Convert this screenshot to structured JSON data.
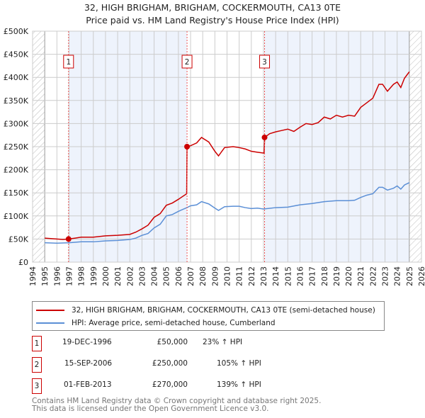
{
  "chart_data": {
    "type": "line",
    "title": "32, HIGH BRIGHAM, BRIGHAM, COCKERMOUTH, CA13 0TE",
    "subtitle": "Price paid vs. HM Land Registry's House Price Index (HPI)",
    "xlim": [
      1994,
      2026
    ],
    "ylim": [
      0,
      500000
    ],
    "x_ticks": [
      "1994",
      "1995",
      "1996",
      "1997",
      "1998",
      "1999",
      "2000",
      "2001",
      "2002",
      "2003",
      "2004",
      "2005",
      "2006",
      "2007",
      "2008",
      "2009",
      "2010",
      "2011",
      "2012",
      "2013",
      "2014",
      "2015",
      "2016",
      "2017",
      "2018",
      "2019",
      "2020",
      "2021",
      "2022",
      "2023",
      "2024",
      "2025",
      "2026"
    ],
    "y_ticks": [
      {
        "v": 0,
        "label": "£0"
      },
      {
        "v": 50000,
        "label": "£50K"
      },
      {
        "v": 100000,
        "label": "£100K"
      },
      {
        "v": 150000,
        "label": "£150K"
      },
      {
        "v": 200000,
        "label": "£200K"
      },
      {
        "v": 250000,
        "label": "£250K"
      },
      {
        "v": 300000,
        "label": "£300K"
      },
      {
        "v": 350000,
        "label": "£350K"
      },
      {
        "v": 400000,
        "label": "£400K"
      },
      {
        "v": 450000,
        "label": "£450K"
      },
      {
        "v": 500000,
        "label": "£500K"
      }
    ],
    "grid": true,
    "series": [
      {
        "name": "32, HIGH BRIGHAM, BRIGHAM, COCKERMOUTH, CA13 0TE (semi-detached house)",
        "color": "#cc0000",
        "x": [
          1995,
          1995.5,
          1996,
          1996.5,
          1996.96,
          1997.5,
          1998,
          1999,
          2000,
          2001,
          2002,
          2002.5,
          2003,
          2003.5,
          2004,
          2004.5,
          2005,
          2005.5,
          2006,
          2006.68,
          2006.71,
          2007,
          2007.5,
          2007.9,
          2008.5,
          2009,
          2009.3,
          2009.8,
          2010.5,
          2011,
          2011.5,
          2012,
          2012.5,
          2013.05,
          2013.1,
          2013.5,
          2014,
          2014.5,
          2015,
          2015.5,
          2016,
          2016.5,
          2017,
          2017.5,
          2018,
          2018.5,
          2019,
          2019.5,
          2020,
          2020.5,
          2021,
          2021.5,
          2022,
          2022.5,
          2022.8,
          2023.2,
          2023.7,
          2024,
          2024.3,
          2024.6,
          2025
        ],
        "y": [
          52000,
          51000,
          50000,
          49000,
          50000,
          52000,
          54000,
          54000,
          57000,
          58000,
          60000,
          65000,
          72000,
          80000,
          97000,
          105000,
          123000,
          128000,
          136000,
          148000,
          250000,
          252000,
          258000,
          270000,
          260000,
          240000,
          230000,
          248000,
          250000,
          248000,
          245000,
          240000,
          238000,
          236000,
          270000,
          278000,
          282000,
          285000,
          288000,
          283000,
          292000,
          300000,
          298000,
          302000,
          314000,
          310000,
          318000,
          314000,
          318000,
          316000,
          335000,
          345000,
          355000,
          385000,
          385000,
          370000,
          385000,
          390000,
          378000,
          398000,
          412000
        ]
      },
      {
        "name": "HPI: Average price, semi-detached house, Cumberland",
        "color": "#5b8fd6",
        "x": [
          1995,
          1996,
          1997,
          1998,
          1999,
          2000,
          2001,
          2002,
          2002.5,
          2003,
          2003.5,
          2004,
          2004.5,
          2005,
          2005.5,
          2006,
          2006.7,
          2007,
          2007.5,
          2007.9,
          2008.5,
          2009,
          2009.3,
          2009.8,
          2010.5,
          2011,
          2011.5,
          2012,
          2012.5,
          2013,
          2014,
          2015,
          2016,
          2017,
          2018,
          2019,
          2020,
          2020.5,
          2021,
          2021.5,
          2022,
          2022.5,
          2022.8,
          2023.2,
          2023.7,
          2024,
          2024.3,
          2024.6,
          2025
        ],
        "y": [
          42000,
          41000,
          42000,
          44000,
          44000,
          46000,
          47000,
          49000,
          52000,
          58000,
          62000,
          74000,
          82000,
          100000,
          103000,
          110000,
          118000,
          122000,
          124000,
          131000,
          126000,
          117000,
          112000,
          120000,
          121000,
          121000,
          118000,
          116000,
          117000,
          115000,
          118000,
          119000,
          124000,
          127000,
          131000,
          133000,
          133000,
          134000,
          140000,
          145000,
          148000,
          162000,
          162000,
          156000,
          160000,
          165000,
          158000,
          167000,
          172000
        ]
      }
    ],
    "sales": [
      {
        "num": "1",
        "x": 1996.96,
        "value": 50000,
        "date": "19-DEC-1996",
        "price": "£50,000",
        "hpi": "23% ↑ HPI"
      },
      {
        "num": "2",
        "x": 2006.71,
        "value": 250000,
        "date": "15-SEP-2006",
        "price": "£250,000",
        "hpi": "105% ↑ HPI"
      },
      {
        "num": "3",
        "x": 2013.09,
        "value": 270000,
        "date": "01-FEB-2013",
        "price": "£270,000",
        "hpi": "139% ↑ HPI"
      }
    ]
  },
  "footer": [
    "Contains HM Land Registry data © Crown copyright and database right 2025.",
    "This data is licensed under the Open Government Licence v3.0."
  ]
}
